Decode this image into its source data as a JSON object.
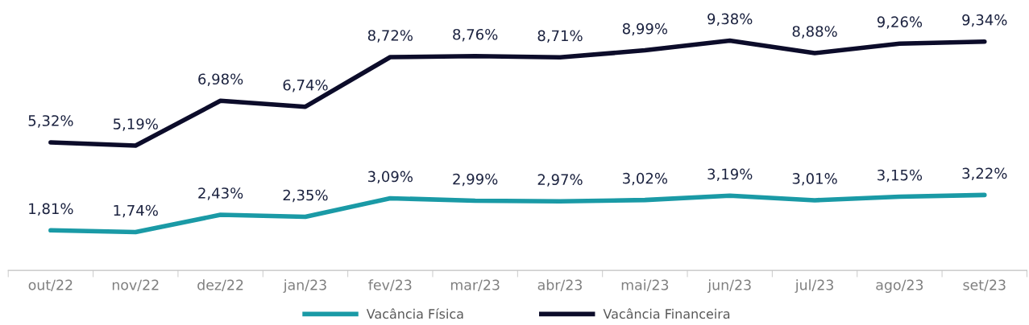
{
  "chart_data": {
    "type": "line",
    "categories": [
      "out/22",
      "nov/22",
      "dez/22",
      "jan/23",
      "fev/23",
      "mar/23",
      "abr/23",
      "mai/23",
      "jun/23",
      "jul/23",
      "ago/23",
      "set/23"
    ],
    "series": [
      {
        "name": "Vacância Física",
        "color": "#1a9aa6",
        "values": [
          1.81,
          1.74,
          2.43,
          2.35,
          3.09,
          2.99,
          2.97,
          3.02,
          3.19,
          3.01,
          3.15,
          3.22
        ],
        "value_labels": [
          "1,81%",
          "1,74%",
          "2,43%",
          "2,35%",
          "3,09%",
          "2,99%",
          "2,97%",
          "3,02%",
          "3,19%",
          "3,01%",
          "3,15%",
          "3,22%"
        ]
      },
      {
        "name": "Vacância Financeira",
        "color": "#0c0c2a",
        "values": [
          5.32,
          5.19,
          6.98,
          6.74,
          8.72,
          8.76,
          8.71,
          8.99,
          9.38,
          8.88,
          9.26,
          9.34
        ],
        "value_labels": [
          "5,32%",
          "5,19%",
          "6,98%",
          "6,74%",
          "8,72%",
          "8,76%",
          "8,71%",
          "8,99%",
          "9,38%",
          "8,88%",
          "9,26%",
          "9,34%"
        ]
      }
    ],
    "tick_labels": "x",
    "grid": false,
    "legend": "bottom",
    "marker": "none",
    "line_style": "solid"
  }
}
